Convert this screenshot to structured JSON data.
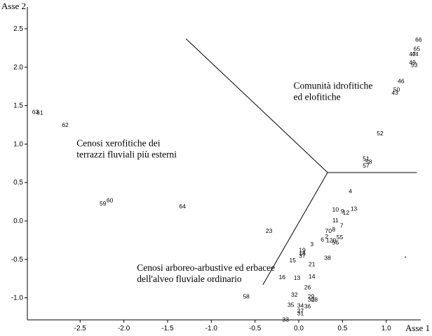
{
  "chart_data": {
    "type": "scatter",
    "title": "",
    "xlabel": "Asse 1",
    "ylabel": "Asse 2",
    "xlim": [
      -3.1,
      1.3
    ],
    "ylim": [
      -1.3,
      2.8
    ],
    "x_ticks": [
      -2.5,
      -2.0,
      -1.5,
      -1.0,
      -0.5,
      0.0,
      0.5,
      1.0
    ],
    "x_tick_labels": [
      "-2.5",
      "-2.0",
      "-1.5",
      "-1.0",
      "-0.5",
      "0.0",
      "0.5",
      "1.0"
    ],
    "y_ticks": [
      -1.0,
      -0.5,
      0.0,
      0.5,
      1.0,
      1.5,
      2.0,
      2.5
    ],
    "y_tick_labels": [
      "-1.0",
      "-0.5",
      "0.0",
      "0.5",
      "1.0",
      "1.5",
      "2.0",
      "2.5"
    ],
    "grid": false,
    "points": [
      {
        "label": "66",
        "x": 1.37,
        "y": 2.36
      },
      {
        "label": "65",
        "x": 1.35,
        "y": 2.24
      },
      {
        "label": "44",
        "x": 1.33,
        "y": 2.17
      },
      {
        "label": "47",
        "x": 1.3,
        "y": 2.17
      },
      {
        "label": "49",
        "x": 1.3,
        "y": 2.06
      },
      {
        "label": "53",
        "x": 1.32,
        "y": 2.03
      },
      {
        "label": "46",
        "x": 1.17,
        "y": 1.82
      },
      {
        "label": "50",
        "x": 1.12,
        "y": 1.71
      },
      {
        "label": "43",
        "x": 1.1,
        "y": 1.67
      },
      {
        "label": "52",
        "x": 0.93,
        "y": 1.14
      },
      {
        "label": "51",
        "x": 0.77,
        "y": 0.81
      },
      {
        "label": "58",
        "x": 0.8,
        "y": 0.77
      },
      {
        "label": "57",
        "x": 0.77,
        "y": 0.72
      },
      {
        "label": "63",
        "x": -3.01,
        "y": 1.42
      },
      {
        "label": "61",
        "x": -2.96,
        "y": 1.41
      },
      {
        "label": "62",
        "x": -2.67,
        "y": 1.25
      },
      {
        "label": "60",
        "x": -2.16,
        "y": 0.27
      },
      {
        "label": "59",
        "x": -2.24,
        "y": 0.23
      },
      {
        "label": "64",
        "x": -1.33,
        "y": 0.19
      },
      {
        "label": "4",
        "x": 0.59,
        "y": 0.39
      },
      {
        "label": "13",
        "x": 0.63,
        "y": 0.16
      },
      {
        "label": "10",
        "x": 0.42,
        "y": 0.15
      },
      {
        "label": "9",
        "x": 0.5,
        "y": 0.13
      },
      {
        "label": "12",
        "x": 0.54,
        "y": 0.11
      },
      {
        "label": "11",
        "x": 0.42,
        "y": 0.01
      },
      {
        "label": "7",
        "x": 0.49,
        "y": -0.06
      },
      {
        "label": "8",
        "x": 0.4,
        "y": -0.11
      },
      {
        "label": "70",
        "x": 0.34,
        "y": -0.13
      },
      {
        "label": "2",
        "x": 0.32,
        "y": -0.2
      },
      {
        "label": "55",
        "x": 0.47,
        "y": -0.21
      },
      {
        "label": "6",
        "x": 0.27,
        "y": -0.24
      },
      {
        "label": "120",
        "x": 0.37,
        "y": -0.25
      },
      {
        "label": "56",
        "x": 0.42,
        "y": -0.28
      },
      {
        "label": "23",
        "x": -0.34,
        "y": -0.13
      },
      {
        "label": "3",
        "x": 0.15,
        "y": -0.3
      },
      {
        "label": "19",
        "x": 0.04,
        "y": -0.38
      },
      {
        "label": "18",
        "x": 0.04,
        "y": -0.42
      },
      {
        "label": "37",
        "x": 0.04,
        "y": -0.45
      },
      {
        "label": "15",
        "x": -0.07,
        "y": -0.51
      },
      {
        "label": "21",
        "x": 0.15,
        "y": -0.56
      },
      {
        "label": "38",
        "x": 0.33,
        "y": -0.48
      },
      {
        "label": "14",
        "x": 0.15,
        "y": -0.72
      },
      {
        "label": "16",
        "x": -0.19,
        "y": -0.73
      },
      {
        "label": "13",
        "x": -0.02,
        "y": -0.74
      },
      {
        "label": "26",
        "x": 0.1,
        "y": -0.86
      },
      {
        "label": "32",
        "x": -0.05,
        "y": -0.96
      },
      {
        "label": "29",
        "x": 0.14,
        "y": -0.98
      },
      {
        "label": "30",
        "x": 0.14,
        "y": -1.02
      },
      {
        "label": "28",
        "x": 0.18,
        "y": -1.02
      },
      {
        "label": "58",
        "x": -0.6,
        "y": -0.98
      },
      {
        "label": "35",
        "x": -0.09,
        "y": -1.09
      },
      {
        "label": "34",
        "x": 0.02,
        "y": -1.1
      },
      {
        "label": "36",
        "x": 0.1,
        "y": -1.11
      },
      {
        "label": "27",
        "x": 0.02,
        "y": -1.17
      },
      {
        "label": "31",
        "x": 0.02,
        "y": -1.2
      },
      {
        "label": "33",
        "x": -0.15,
        "y": -1.28
      }
    ],
    "dots": [
      {
        "x": 1.22,
        "y": -0.47
      }
    ],
    "separators": [
      {
        "from": [
          -1.29,
          2.37
        ],
        "to": [
          0.33,
          0.63
        ]
      },
      {
        "from": [
          0.33,
          0.63
        ],
        "to": [
          1.35,
          0.63
        ]
      },
      {
        "from": [
          0.33,
          0.63
        ],
        "to": [
          -0.41,
          -0.83
        ]
      }
    ],
    "annotations": [
      {
        "lines": [
          "Comunità idrofitiche",
          "ed elofitiche"
        ],
        "x": -0.06,
        "y": 1.72
      },
      {
        "lines": [
          "Cenosi xerofitiche dei",
          "terrazzi fluviali più esterni"
        ],
        "x": -2.54,
        "y": 0.97
      },
      {
        "lines": [
          "Cenosi arboreo-arbustive ed erbacee",
          "dell'alveo fluviale ordinario"
        ],
        "x": -1.85,
        "y": -0.65
      }
    ]
  }
}
